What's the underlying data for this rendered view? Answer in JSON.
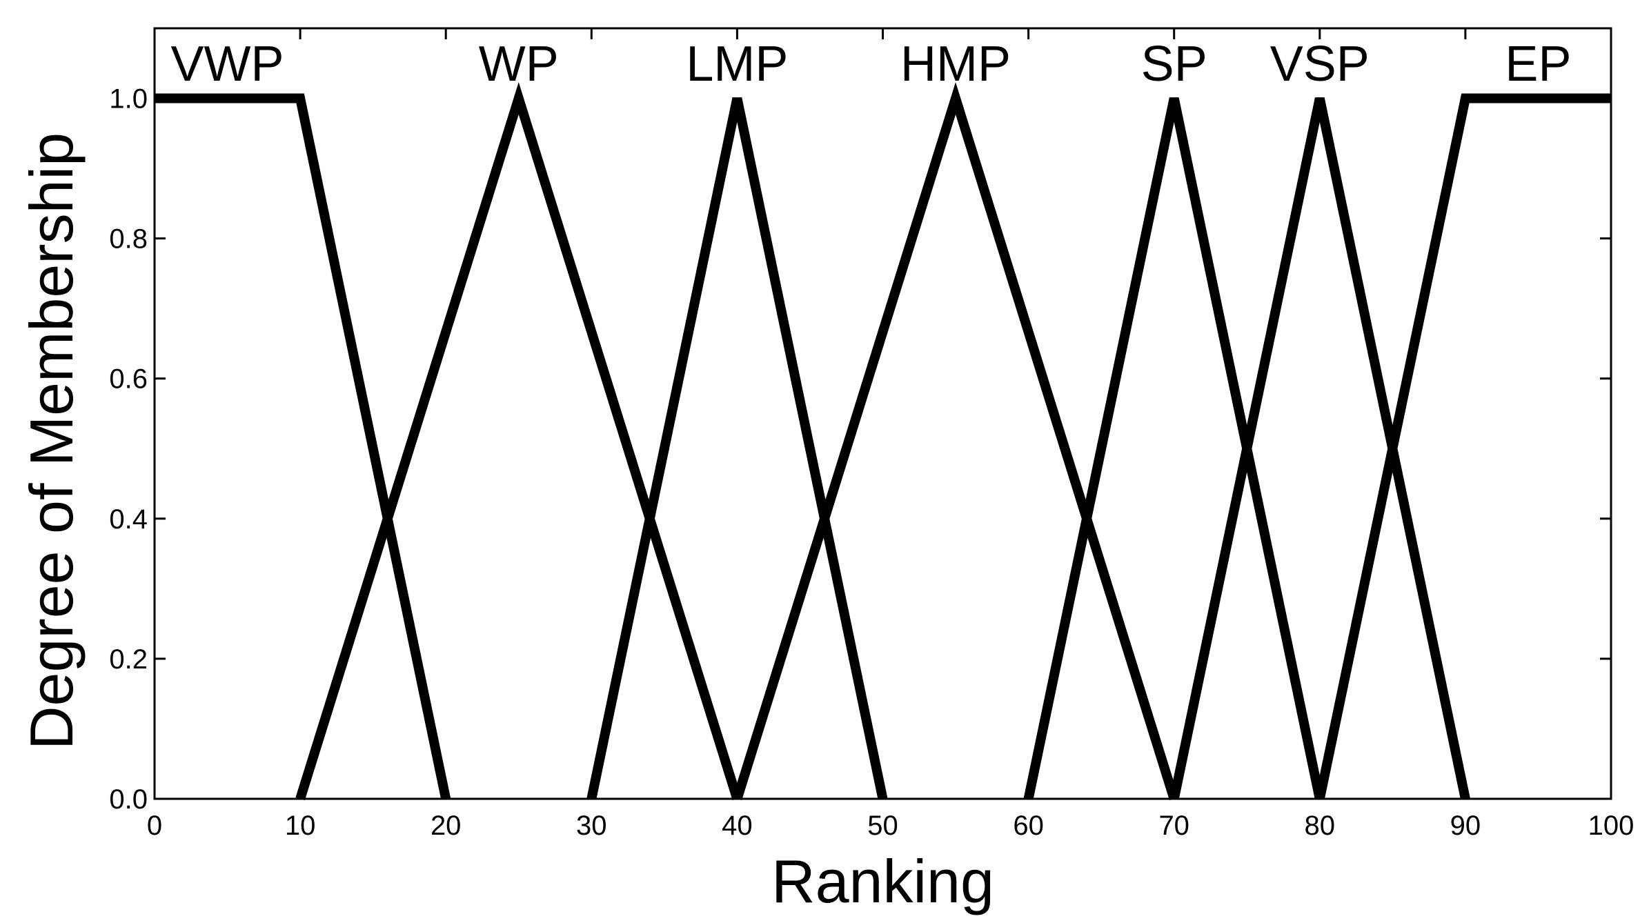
{
  "chart_data": {
    "type": "line",
    "xlabel": "Ranking",
    "ylabel": "Degree of Membership",
    "xlim": [
      0,
      100
    ],
    "ylim": [
      0,
      1.1
    ],
    "x_ticks": [
      0,
      10,
      20,
      30,
      40,
      50,
      60,
      70,
      80,
      90,
      100
    ],
    "x_tick_labels": [
      "0",
      "10",
      "20",
      "30",
      "40",
      "50",
      "60",
      "70",
      "80",
      "90",
      "100"
    ],
    "y_ticks": [
      0,
      0.2,
      0.4,
      0.6,
      0.8,
      1.0
    ],
    "y_tick_labels": [
      "0.0",
      "0.2",
      "0.4",
      "0.6",
      "0.8",
      "1.0"
    ],
    "grid": false,
    "line_color": "#000000",
    "series": [
      {
        "name": "VWP",
        "label_x": 5,
        "points": [
          [
            0,
            1
          ],
          [
            10,
            1
          ],
          [
            20,
            0
          ]
        ]
      },
      {
        "name": "WP",
        "label_x": 25,
        "points": [
          [
            10,
            0
          ],
          [
            25,
            1
          ],
          [
            40,
            0
          ]
        ]
      },
      {
        "name": "LMP",
        "label_x": 40,
        "points": [
          [
            30,
            0
          ],
          [
            40,
            1
          ],
          [
            50,
            0
          ]
        ]
      },
      {
        "name": "HMP",
        "label_x": 55,
        "points": [
          [
            40,
            0
          ],
          [
            55,
            1
          ],
          [
            70,
            0
          ]
        ]
      },
      {
        "name": "SP",
        "label_x": 70,
        "points": [
          [
            60,
            0
          ],
          [
            70,
            1
          ],
          [
            80,
            0
          ]
        ]
      },
      {
        "name": "VSP",
        "label_x": 80,
        "points": [
          [
            70,
            0
          ],
          [
            80,
            1
          ],
          [
            90,
            0
          ]
        ]
      },
      {
        "name": "EP",
        "label_x": 95,
        "points": [
          [
            80,
            0
          ],
          [
            90,
            1
          ],
          [
            100,
            1
          ]
        ]
      }
    ]
  }
}
